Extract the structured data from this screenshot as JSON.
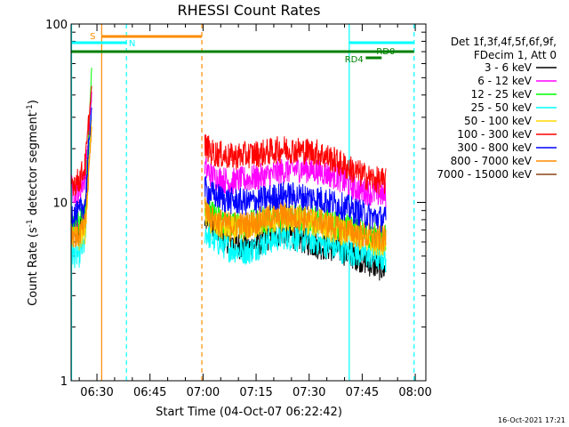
{
  "chart_data": {
    "type": "line",
    "title": "RHESSI Count Rates",
    "xlabel": "Start Time (04-Oct-07 06:22:42)",
    "ylabel": "Count Rate (s⁻¹ detector segment⁻¹)",
    "ylabel_parts": [
      "Count Rate (s",
      "-1",
      " detector segment",
      "-1",
      ")"
    ],
    "y_scale": "log",
    "ylim": [
      1,
      100
    ],
    "y_ticks": [
      {
        "v": 1,
        "label": "1"
      },
      {
        "v": 10,
        "label": "10"
      },
      {
        "v": 100,
        "label": "100"
      }
    ],
    "xlim": [
      "06:22:42",
      "08:03:00"
    ],
    "x_ticks": [
      "06:30",
      "06:45",
      "07:00",
      "07:15",
      "07:30",
      "07:45",
      "08:00"
    ],
    "legend_header": [
      "Det 1f,3f,4f,5f,6f,9f,",
      "FDecim 1, Att 0"
    ],
    "legend_position": "right",
    "data_gap": [
      "06:28:30",
      "07:00:30"
    ],
    "series": [
      {
        "name": "3 - 6 keV",
        "color": "#000000",
        "values": [
          [
            0,
            7.2
          ],
          [
            2,
            6.5
          ],
          [
            4,
            8.5
          ],
          [
            6,
            40
          ],
          [
            7,
            14
          ],
          [
            37.5,
            9.0
          ],
          [
            40,
            7.2
          ],
          [
            45,
            6.0
          ],
          [
            50,
            5.5
          ],
          [
            55,
            6.3
          ],
          [
            60,
            6.8
          ],
          [
            65,
            6.2
          ],
          [
            70,
            5.7
          ],
          [
            75,
            5.5
          ],
          [
            80,
            5.0
          ],
          [
            85,
            4.5
          ],
          [
            89,
            4.2
          ]
        ]
      },
      {
        "name": "6 - 12 keV",
        "color": "#ff00ff",
        "values": [
          [
            0,
            12
          ],
          [
            2,
            11
          ],
          [
            4,
            14
          ],
          [
            6,
            45
          ],
          [
            7,
            20
          ],
          [
            37.5,
            16
          ],
          [
            40,
            14
          ],
          [
            45,
            13
          ],
          [
            50,
            13.5
          ],
          [
            55,
            14
          ],
          [
            60,
            15
          ],
          [
            65,
            15.5
          ],
          [
            70,
            15
          ],
          [
            75,
            14
          ],
          [
            80,
            12
          ],
          [
            85,
            11.3
          ],
          [
            89,
            11
          ]
        ]
      },
      {
        "name": "12 - 25 keV",
        "color": "#00ff00",
        "values": [
          [
            0,
            7.8
          ],
          [
            2,
            7.5
          ],
          [
            4,
            9
          ],
          [
            6,
            72
          ],
          [
            7,
            15
          ],
          [
            37.5,
            10
          ],
          [
            40,
            8.5
          ],
          [
            45,
            7.5
          ],
          [
            50,
            7.5
          ],
          [
            55,
            8
          ],
          [
            60,
            8.5
          ],
          [
            65,
            8.2
          ],
          [
            70,
            8
          ],
          [
            75,
            7.5
          ],
          [
            80,
            7
          ],
          [
            85,
            6.5
          ],
          [
            89,
            6.3
          ]
        ]
      },
      {
        "name": "25 - 50 keV",
        "color": "#00ffff",
        "values": [
          [
            0,
            5.2
          ],
          [
            2,
            5
          ],
          [
            4,
            6
          ],
          [
            6,
            50
          ],
          [
            7,
            12
          ],
          [
            37.5,
            7
          ],
          [
            40,
            6.2
          ],
          [
            45,
            5.5
          ],
          [
            50,
            5.3
          ],
          [
            55,
            6
          ],
          [
            60,
            6.5
          ],
          [
            65,
            6.2
          ],
          [
            70,
            6
          ],
          [
            75,
            5.5
          ],
          [
            80,
            5.2
          ],
          [
            85,
            5
          ],
          [
            89,
            4.8
          ]
        ]
      },
      {
        "name": "50 - 100 keV",
        "color": "#ffd700",
        "values": [
          [
            0,
            6.5
          ],
          [
            2,
            6.2
          ],
          [
            4,
            7
          ],
          [
            6,
            35
          ],
          [
            7,
            12
          ],
          [
            37.5,
            9
          ],
          [
            40,
            7.5
          ],
          [
            45,
            7
          ],
          [
            50,
            7.2
          ],
          [
            55,
            7.8
          ],
          [
            60,
            8
          ],
          [
            65,
            7.9
          ],
          [
            70,
            7.5
          ],
          [
            75,
            7
          ],
          [
            80,
            6.5
          ],
          [
            85,
            6
          ],
          [
            89,
            6
          ]
        ]
      },
      {
        "name": "100 - 300 keV",
        "color": "#ff0000",
        "values": [
          [
            0,
            13
          ],
          [
            2,
            13
          ],
          [
            4,
            16
          ],
          [
            6,
            50
          ],
          [
            7,
            25
          ],
          [
            37.5,
            21
          ],
          [
            40,
            19
          ],
          [
            45,
            18
          ],
          [
            50,
            18.5
          ],
          [
            55,
            19
          ],
          [
            60,
            20
          ],
          [
            65,
            19.5
          ],
          [
            70,
            19
          ],
          [
            75,
            17
          ],
          [
            80,
            15
          ],
          [
            85,
            13.5
          ],
          [
            89,
            13
          ]
        ]
      },
      {
        "name": "300 - 800 keV",
        "color": "#0000ff",
        "values": [
          [
            0,
            8.8
          ],
          [
            2,
            8.5
          ],
          [
            4,
            10
          ],
          [
            6,
            40
          ],
          [
            7,
            15
          ],
          [
            37.5,
            12
          ],
          [
            40,
            11
          ],
          [
            45,
            10.2
          ],
          [
            50,
            10
          ],
          [
            55,
            10.5
          ],
          [
            60,
            11
          ],
          [
            65,
            10.8
          ],
          [
            70,
            10.5
          ],
          [
            75,
            9.8
          ],
          [
            80,
            9
          ],
          [
            85,
            8.3
          ],
          [
            89,
            8
          ]
        ]
      },
      {
        "name": "800 - 7000 keV",
        "color": "#ff8c00",
        "values": [
          [
            0,
            6.8
          ],
          [
            2,
            6.5
          ],
          [
            4,
            7.5
          ],
          [
            6,
            30
          ],
          [
            7,
            11
          ],
          [
            37.5,
            10
          ],
          [
            40,
            8
          ],
          [
            45,
            7.5
          ],
          [
            50,
            7.5
          ],
          [
            55,
            8.2
          ],
          [
            60,
            8.5
          ],
          [
            65,
            8.2
          ],
          [
            70,
            7.9
          ],
          [
            75,
            7.3
          ],
          [
            80,
            6.8
          ],
          [
            85,
            6.3
          ],
          [
            89,
            6.2
          ]
        ]
      },
      {
        "name": "7000 - 15000 keV",
        "color": "#8b4513",
        "values": []
      }
    ],
    "annotations": [
      {
        "text": "S",
        "color": "#ff8c00"
      },
      {
        "text": "N",
        "color": "#00ffff"
      },
      {
        "text": "RD0",
        "color": "#008000"
      },
      {
        "text": "RD4",
        "color": "#008000"
      }
    ]
  },
  "footer_timestamp": "16-Oct-2021 17:21"
}
